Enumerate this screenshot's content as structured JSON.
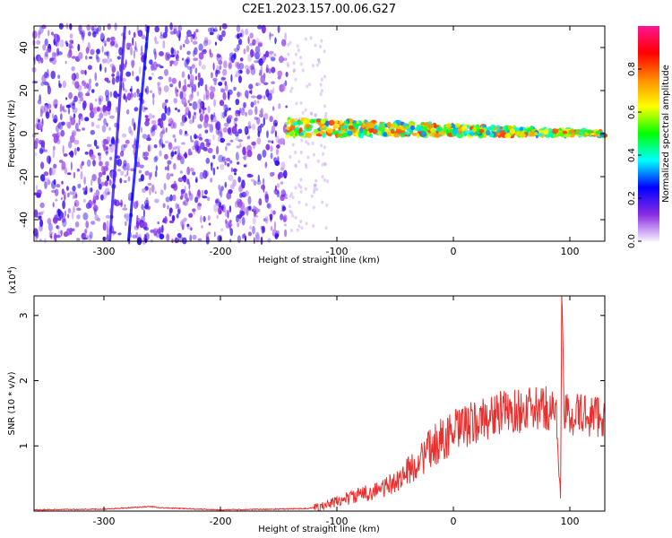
{
  "title": "C2E1.2023.157.00.06.G27",
  "chart_data": [
    {
      "type": "heatmap",
      "xlabel": "Height of straight line (km)",
      "ylabel": "Frequency (Hz)",
      "xlim": [
        -360,
        130
      ],
      "ylim": [
        -50,
        50
      ],
      "x_ticks": [
        -300,
        -200,
        -100,
        0,
        100
      ],
      "y_ticks": [
        -40,
        -20,
        0,
        20,
        40
      ],
      "colorbar": {
        "label": "Normalized spectral amplitude",
        "range": [
          0,
          1
        ],
        "ticks": [
          0.0,
          0.2,
          0.4,
          0.6,
          0.8
        ],
        "colormap": [
          "#f5f0ff",
          "#8a2be2",
          "#0000ff",
          "#00ffff",
          "#00ff00",
          "#ffff00",
          "#ff8c00",
          "#ff0000",
          "#ff1493"
        ]
      },
      "regions": [
        {
          "x_range": [
            -360,
            -143
          ],
          "y_range": [
            -50,
            50
          ],
          "pattern": "broadband noise",
          "amplitude": 0.15
        },
        {
          "x_range": [
            -143,
            130
          ],
          "center_freq": [
            3,
            0
          ],
          "pattern": "narrowband signal",
          "amplitude": 0.5
        }
      ],
      "streaks": [
        {
          "x_start": -279,
          "x_end": -262,
          "y_start": -50,
          "y_end": 50,
          "amplitude": 0.25
        },
        {
          "x_start": -295,
          "x_end": -282,
          "y_start": -50,
          "y_end": 50,
          "amplitude": 0.2
        }
      ]
    },
    {
      "type": "line",
      "xlabel": "Height of straight line (km)",
      "ylabel": "SNR (10 * v/v)",
      "y_multiplier_label": "(x10",
      "y_multiplier_exp": "4",
      "xlim": [
        -360,
        130
      ],
      "ylim": [
        0,
        3.3
      ],
      "x_ticks": [
        -300,
        -200,
        -100,
        0,
        100
      ],
      "y_ticks": [
        1,
        2,
        3
      ],
      "color": "#e8312f",
      "series": [
        {
          "x": [
            -360,
            -300,
            -270,
            -260,
            -250,
            -200,
            -150,
            -125,
            -110,
            -100,
            -90,
            -80,
            -70,
            -60,
            -50,
            -40,
            -30,
            -20,
            -10,
            0,
            10,
            20,
            30,
            40,
            50,
            60,
            70,
            80,
            88,
            92,
            93,
            95,
            100,
            110,
            120,
            130
          ],
          "y": [
            0.02,
            0.03,
            0.06,
            0.07,
            0.05,
            0.02,
            0.03,
            0.04,
            0.08,
            0.15,
            0.2,
            0.25,
            0.3,
            0.35,
            0.45,
            0.6,
            0.75,
            0.95,
            1.1,
            1.2,
            1.3,
            1.35,
            1.45,
            1.5,
            1.52,
            1.55,
            1.55,
            1.58,
            1.55,
            0.3,
            3.3,
            1.45,
            1.5,
            1.48,
            1.47,
            1.47
          ]
        }
      ]
    }
  ]
}
